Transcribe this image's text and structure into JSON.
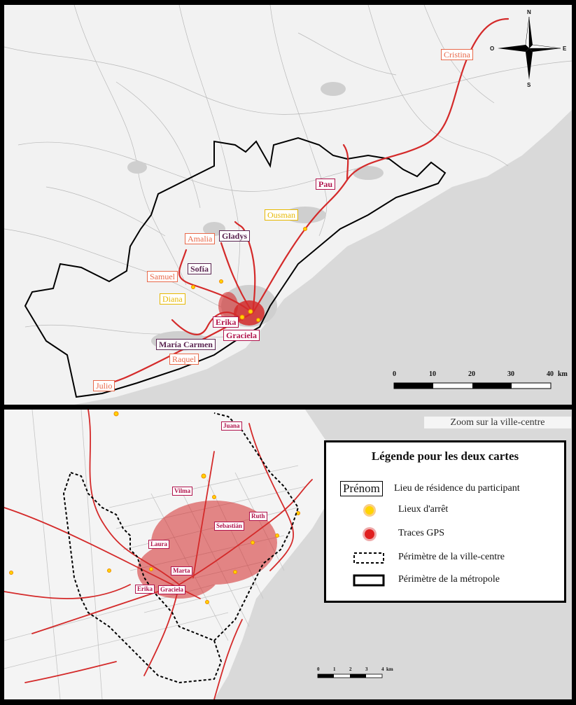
{
  "top_map": {
    "participants": [
      {
        "name": "Cristina",
        "style": "salmon"
      },
      {
        "name": "Pau",
        "style": "crimson"
      },
      {
        "name": "Ousman",
        "style": "yellow"
      },
      {
        "name": "Amalia",
        "style": "salmon"
      },
      {
        "name": "Gladys",
        "style": "purple"
      },
      {
        "name": "Sofía",
        "style": "purple"
      },
      {
        "name": "Samuel",
        "style": "salmon"
      },
      {
        "name": "Diana",
        "style": "yellow"
      },
      {
        "name": "Erika",
        "style": "crimson"
      },
      {
        "name": "Graciela",
        "style": "crimson"
      },
      {
        "name": "María Carmen",
        "style": "purple"
      },
      {
        "name": "Raquel",
        "style": "salmon"
      },
      {
        "name": "Julio",
        "style": "salmon"
      }
    ],
    "scale": {
      "ticks": [
        "0",
        "10",
        "20",
        "30",
        "40"
      ],
      "unit": "km"
    },
    "compass": {
      "n": "N",
      "s": "S",
      "e": "E",
      "o": "O"
    }
  },
  "bottom_map": {
    "zoom_title": "Zoom sur la ville-centre",
    "participants": [
      {
        "name": "Juana",
        "style": "crimson"
      },
      {
        "name": "Vilma",
        "style": "crimson"
      },
      {
        "name": "Ruth",
        "style": "crimson"
      },
      {
        "name": "Sebastián",
        "style": "crimson"
      },
      {
        "name": "Laura",
        "style": "crimson"
      },
      {
        "name": "Marta",
        "style": "crimson"
      },
      {
        "name": "Erika",
        "style": "crimson"
      },
      {
        "name": "Graciela",
        "style": "crimson"
      }
    ],
    "scale": {
      "ticks": [
        "0",
        "1",
        "2",
        "3",
        "4"
      ],
      "unit": "km"
    }
  },
  "legend": {
    "title": "Légende pour les deux cartes",
    "items": [
      {
        "symbol": "Prénom",
        "label": "Lieu de résidence du participant"
      },
      {
        "symbol": "stop-point-icon",
        "label": "Lieux d'arrêt"
      },
      {
        "symbol": "gps-trace-icon",
        "label": "Traces GPS"
      },
      {
        "symbol": "dashed-perimeter-icon",
        "label": "Périmètre de la ville-centre"
      },
      {
        "symbol": "solid-perimeter-icon",
        "label": "Périmètre de la métropole"
      }
    ]
  },
  "colors": {
    "trace": "#d42a2a",
    "stop": "#ffd400",
    "sea": "#d9d9d9",
    "land": "#f2f2f2"
  }
}
